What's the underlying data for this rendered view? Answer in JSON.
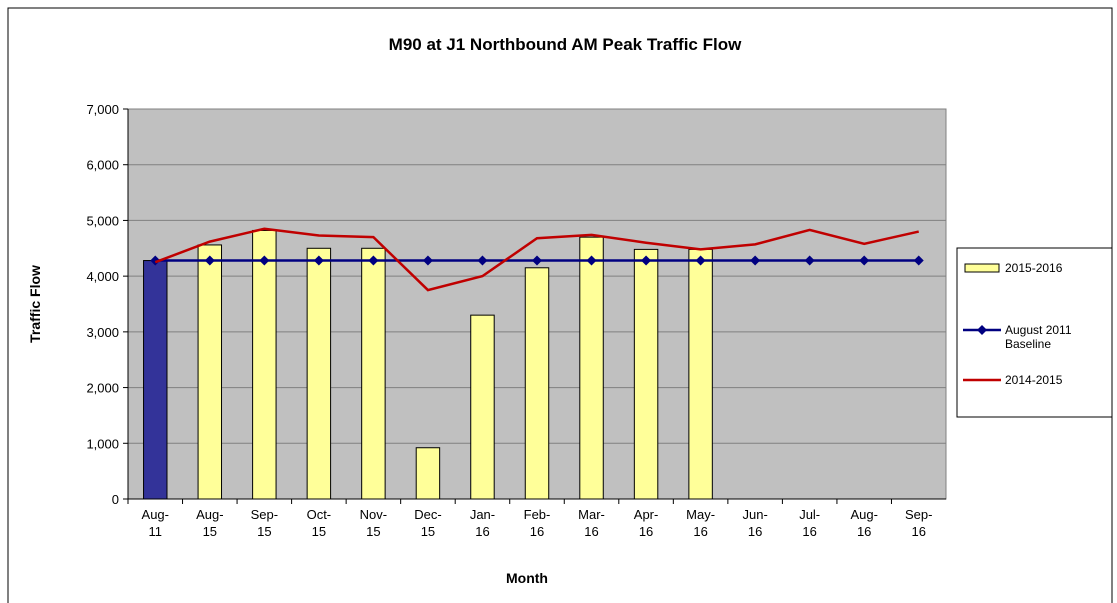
{
  "chart_data": {
    "type": "bar_line",
    "title": "M90 at J1 Northbound AM Peak Traffic Flow",
    "x_label": "Month",
    "y_label": "Traffic Flow",
    "categories": [
      "Aug-11",
      "Aug-15",
      "Sep-15",
      "Oct-15",
      "Nov-15",
      "Dec-15",
      "Jan-16",
      "Feb-16",
      "Mar-16",
      "Apr-16",
      "May-16",
      "Jun-16",
      "Jul-16",
      "Aug-16",
      "Sep-16"
    ],
    "series": [
      {
        "name": "2015-2016",
        "type": "bar",
        "color": "#ffff99",
        "colors": [
          "#333399",
          "#ffff99",
          "#ffff99",
          "#ffff99",
          "#ffff99",
          "#ffff99",
          "#ffff99",
          "#ffff99",
          "#ffff99",
          "#ffff99",
          "#ffff99",
          "#ffff99",
          "#ffff99",
          "#ffff99",
          "#ffff99"
        ],
        "values": [
          4280,
          4560,
          4820,
          4500,
          4500,
          920,
          3300,
          4150,
          4700,
          4480,
          4480,
          null,
          null,
          null,
          null
        ]
      },
      {
        "name": "August 2011 Baseline",
        "type": "line",
        "marker": "diamond",
        "color": "#000080",
        "values": [
          4280,
          4280,
          4280,
          4280,
          4280,
          4280,
          4280,
          4280,
          4280,
          4280,
          4280,
          4280,
          4280,
          4280,
          4280
        ]
      },
      {
        "name": "2014-2015",
        "type": "line",
        "color": "#c00000",
        "values": [
          4250,
          4620,
          4850,
          4730,
          4700,
          3750,
          4000,
          4680,
          4740,
          4600,
          4480,
          4570,
          4830,
          4580,
          4800
        ]
      }
    ],
    "ylim": [
      0,
      7000
    ],
    "yticks": [
      0,
      {
        "value": 1000,
        "label": "1,000"
      },
      {
        "value": 2000,
        "label": "2,000"
      },
      {
        "value": 3000,
        "label": "3,000"
      },
      {
        "value": 4000,
        "label": "4,000"
      },
      {
        "value": 5000,
        "label": "5,000"
      },
      {
        "value": 6000,
        "label": "6,000"
      },
      {
        "value": 7000,
        "label": "7,000"
      }
    ],
    "grid": true,
    "legend": "right"
  }
}
